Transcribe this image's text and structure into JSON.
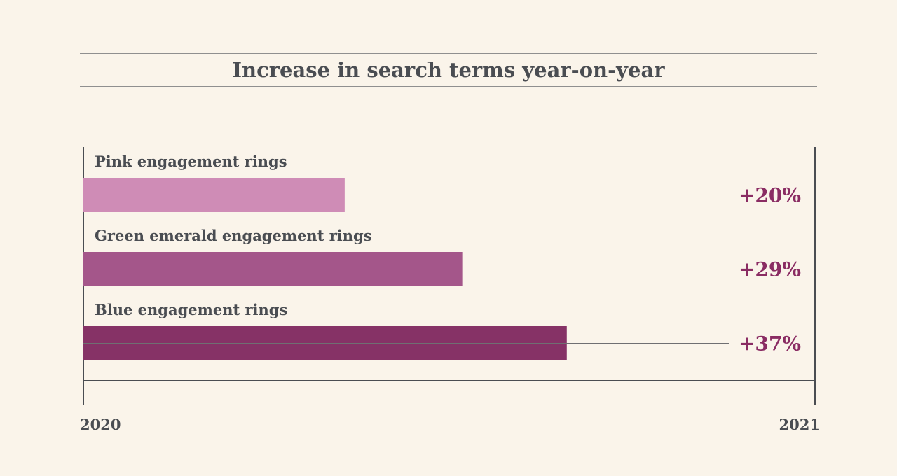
{
  "chart_data": {
    "type": "bar",
    "title": "Increase in search terms year-on-year",
    "categories": [
      "Pink engagement rings",
      "Green emerald engagement rings",
      "Blue engagement rings"
    ],
    "values": [
      20,
      29,
      37
    ],
    "value_labels": [
      "+20%",
      "+29%",
      "+37%"
    ],
    "colors": [
      "#cf8cb6",
      "#a4568a",
      "#863266"
    ],
    "label_color": "#8a2c63",
    "x_start_label": "2020",
    "x_end_label": "2021",
    "xlim": [
      0,
      56
    ],
    "orientation": "horizontal",
    "grid": false
  }
}
